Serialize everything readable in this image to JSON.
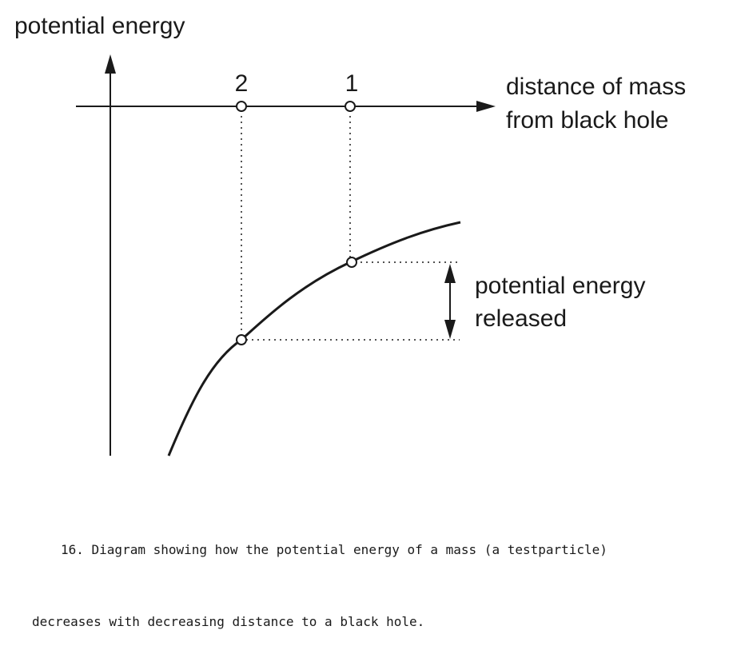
{
  "diagram": {
    "y_axis_label": "potential energy",
    "x_axis_label_line1": "distance of mass",
    "x_axis_label_line2": "from black hole",
    "points": [
      {
        "label": "2"
      },
      {
        "label": "1"
      }
    ],
    "released_label_line1": "potential energy",
    "released_label_line2": "released"
  },
  "caption": {
    "line1": "16. Diagram showing how the potential energy of a mass (a testparticle)",
    "line2": "decreases with decreasing distance to a black hole."
  }
}
